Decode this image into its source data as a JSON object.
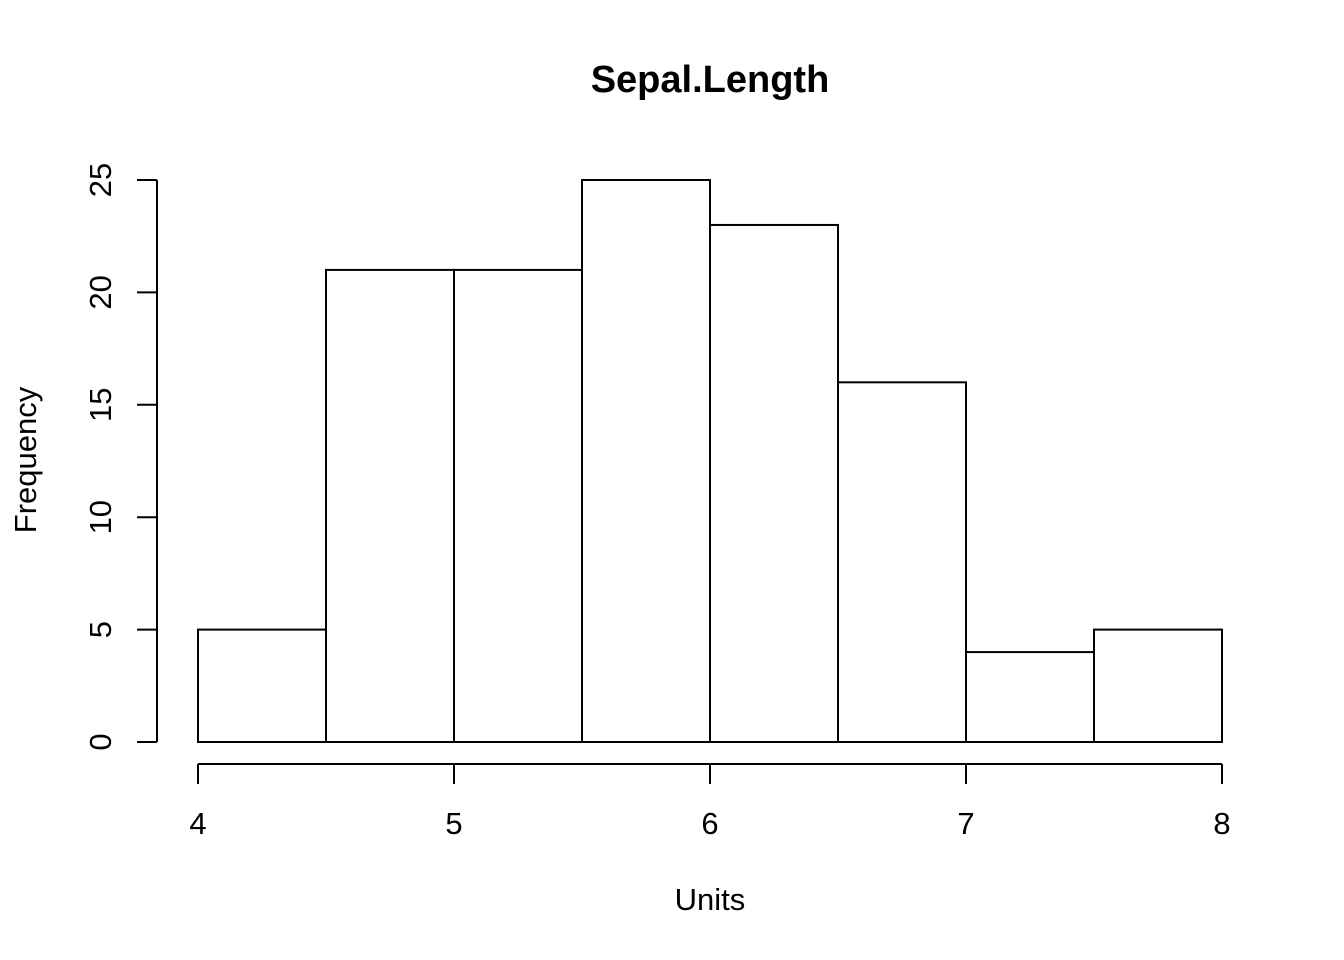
{
  "chart_data": {
    "type": "bar",
    "title": "Sepal.Length",
    "xlabel": "Units",
    "ylabel": "Frequency",
    "bins": [
      {
        "from": 4.0,
        "to": 4.5,
        "count": 5
      },
      {
        "from": 4.5,
        "to": 5.0,
        "count": 21
      },
      {
        "from": 5.0,
        "to": 5.5,
        "count": 21
      },
      {
        "from": 5.5,
        "to": 6.0,
        "count": 25
      },
      {
        "from": 6.0,
        "to": 6.5,
        "count": 23
      },
      {
        "from": 6.5,
        "to": 7.0,
        "count": 16
      },
      {
        "from": 7.0,
        "to": 7.5,
        "count": 4
      },
      {
        "from": 7.5,
        "to": 8.0,
        "count": 5
      }
    ],
    "xlim": [
      4,
      8
    ],
    "ylim": [
      0,
      25
    ],
    "xticks": [
      4,
      5,
      6,
      7,
      8
    ],
    "yticks": [
      0,
      5,
      10,
      15,
      20,
      25
    ],
    "grid": false,
    "legend": "none",
    "colors": {
      "bar_fill": "#ffffff",
      "bar_stroke": "#000000"
    }
  }
}
